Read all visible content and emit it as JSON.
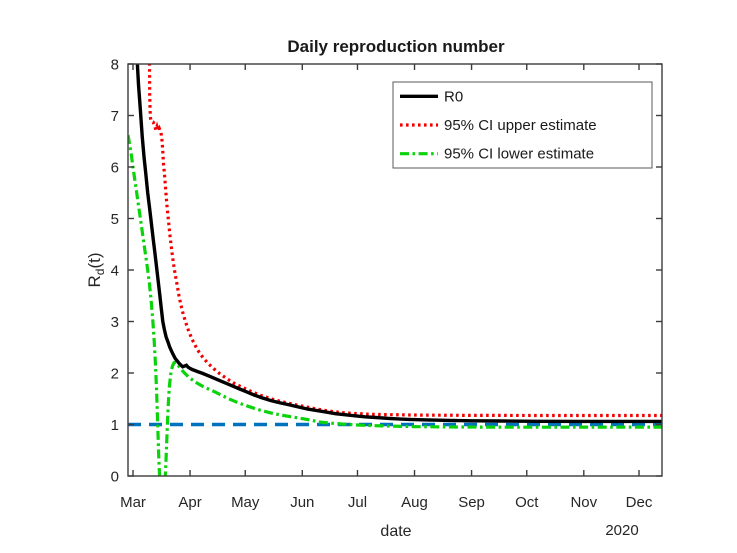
{
  "chart_data": {
    "type": "line",
    "title": "Daily reproduction number",
    "xlabel": "date",
    "ylabel": "R_d(t)",
    "ylabel_parts": {
      "base": "R",
      "sub": "d",
      "rest": "(t)"
    },
    "xaxis_year": "2020",
    "ylim": [
      0,
      8
    ],
    "yticks": [
      0,
      1,
      2,
      3,
      4,
      5,
      6,
      7,
      8
    ],
    "xlim_days": [
      -2.72,
      287.5
    ],
    "xticks": [
      {
        "label": "Mar",
        "day": 0
      },
      {
        "label": "Apr",
        "day": 31
      },
      {
        "label": "May",
        "day": 61
      },
      {
        "label": "Jun",
        "day": 92
      },
      {
        "label": "Jul",
        "day": 122
      },
      {
        "label": "Aug",
        "day": 153
      },
      {
        "label": "Sep",
        "day": 184
      },
      {
        "label": "Oct",
        "day": 214
      },
      {
        "label": "Nov",
        "day": 245
      },
      {
        "label": "Dec",
        "day": 275
      }
    ],
    "grid": false,
    "legend_position": "top-right",
    "axis_color": "#3c3c3c",
    "tick_label_color": "#262626",
    "series": [
      {
        "name": "threshold-line",
        "label": "",
        "in_legend": false,
        "color": "#0072bd",
        "style": "dashed",
        "points": [
          [
            -2.72,
            1.0
          ],
          [
            287.5,
            1.0
          ]
        ]
      },
      {
        "name": "ci-upper",
        "label": "95% CI upper estimate",
        "in_legend": true,
        "color": "#f40000",
        "style": "dotted",
        "points": [
          [
            8.7,
            8.6
          ],
          [
            8.9,
            8.2
          ],
          [
            9.0,
            7.8
          ],
          [
            9.1,
            7.4
          ],
          [
            9.3,
            7.1
          ],
          [
            9.5,
            6.95
          ],
          [
            10,
            6.88
          ],
          [
            11,
            6.87
          ],
          [
            11.8,
            6.8
          ],
          [
            12.4,
            6.72
          ],
          [
            13,
            6.78
          ],
          [
            13.6,
            6.7
          ],
          [
            14.3,
            6.75
          ],
          [
            15.2,
            6.67
          ],
          [
            15.8,
            6.5
          ],
          [
            16.2,
            6.3
          ],
          [
            16.6,
            6.05
          ],
          [
            17,
            5.9
          ],
          [
            17.4,
            5.73
          ],
          [
            18,
            5.45
          ],
          [
            18.6,
            5.2
          ],
          [
            19.3,
            4.95
          ],
          [
            20,
            4.7
          ],
          [
            21,
            4.4
          ],
          [
            22,
            4.12
          ],
          [
            23,
            3.9
          ],
          [
            24,
            3.7
          ],
          [
            25,
            3.5
          ],
          [
            26,
            3.33
          ],
          [
            27,
            3.18
          ],
          [
            28.5,
            3.0
          ],
          [
            30,
            2.84
          ],
          [
            32,
            2.66
          ],
          [
            34,
            2.52
          ],
          [
            36,
            2.4
          ],
          [
            38,
            2.3
          ],
          [
            41,
            2.18
          ],
          [
            44,
            2.08
          ],
          [
            47,
            1.99
          ],
          [
            51,
            1.89
          ],
          [
            55,
            1.8
          ],
          [
            60,
            1.71
          ],
          [
            65,
            1.63
          ],
          [
            70,
            1.56
          ],
          [
            75,
            1.5
          ],
          [
            80,
            1.45
          ],
          [
            85,
            1.41
          ],
          [
            90,
            1.37
          ],
          [
            95,
            1.335
          ],
          [
            100,
            1.3
          ],
          [
            105,
            1.27
          ],
          [
            110,
            1.245
          ],
          [
            115,
            1.228
          ],
          [
            120,
            1.215
          ],
          [
            128,
            1.2
          ],
          [
            136,
            1.193
          ],
          [
            145,
            1.188
          ],
          [
            155,
            1.183
          ],
          [
            168,
            1.18
          ],
          [
            182,
            1.177
          ],
          [
            200,
            1.176
          ],
          [
            225,
            1.175
          ],
          [
            250,
            1.175
          ],
          [
            270,
            1.175
          ],
          [
            287.5,
            1.175
          ]
        ]
      },
      {
        "name": "ci-lower",
        "label": "95% CI lower estimate",
        "in_legend": true,
        "color": "#0bd30b",
        "style": "dashdot",
        "points": [
          [
            -2.72,
            6.62
          ],
          [
            -2,
            6.48
          ],
          [
            -1,
            6.25
          ],
          [
            0,
            6.0
          ],
          [
            1,
            5.75
          ],
          [
            2,
            5.5
          ],
          [
            3,
            5.25
          ],
          [
            4,
            5.0
          ],
          [
            5,
            4.75
          ],
          [
            6,
            4.5
          ],
          [
            7,
            4.25
          ],
          [
            8,
            4.0
          ],
          [
            9,
            3.7
          ],
          [
            10,
            3.35
          ],
          [
            10.8,
            3.0
          ],
          [
            11.5,
            2.62
          ],
          [
            12.2,
            2.15
          ],
          [
            12.8,
            1.65
          ],
          [
            13.4,
            1.0
          ],
          [
            14,
            0.35
          ],
          [
            14.6,
            -0.15
          ],
          [
            15.2,
            -0.4
          ],
          [
            16,
            -0.5
          ],
          [
            16.8,
            -0.45
          ],
          [
            17.4,
            -0.15
          ],
          [
            18,
            0.35
          ],
          [
            18.6,
            0.9
          ],
          [
            19.2,
            1.4
          ],
          [
            19.8,
            1.75
          ],
          [
            20.6,
            2.0
          ],
          [
            21.4,
            2.13
          ],
          [
            22.3,
            2.2
          ],
          [
            23.2,
            2.21
          ],
          [
            24.5,
            2.15
          ],
          [
            26,
            2.08
          ],
          [
            28,
            2.0
          ],
          [
            30,
            1.93
          ],
          [
            32.5,
            1.86
          ],
          [
            35,
            1.8
          ],
          [
            38,
            1.74
          ],
          [
            41,
            1.69
          ],
          [
            44,
            1.64
          ],
          [
            48,
            1.57
          ],
          [
            52,
            1.5
          ],
          [
            56,
            1.44
          ],
          [
            60,
            1.385
          ],
          [
            64,
            1.335
          ],
          [
            68,
            1.29
          ],
          [
            72,
            1.25
          ],
          [
            76,
            1.215
          ],
          [
            81,
            1.18
          ],
          [
            86,
            1.15
          ],
          [
            91,
            1.12
          ],
          [
            96,
            1.09
          ],
          [
            101,
            1.05
          ],
          [
            108,
            1.025
          ],
          [
            115,
            1.005
          ],
          [
            122,
            0.99
          ],
          [
            130,
            0.978
          ],
          [
            140,
            0.968
          ],
          [
            152,
            0.96
          ],
          [
            163,
            0.955
          ],
          [
            175,
            0.951
          ],
          [
            190,
            0.949
          ],
          [
            205,
            0.948
          ],
          [
            225,
            0.948
          ],
          [
            245,
            0.949
          ],
          [
            270,
            0.95
          ],
          [
            287.5,
            0.95
          ]
        ]
      },
      {
        "name": "r0",
        "label": "R0",
        "in_legend": true,
        "color": "#000000",
        "style": "solid",
        "points": [
          [
            1.8,
            8.5
          ],
          [
            2.2,
            8.1
          ],
          [
            3,
            7.6
          ],
          [
            4,
            7.1
          ],
          [
            5,
            6.6
          ],
          [
            6,
            6.2
          ],
          [
            7,
            5.85
          ],
          [
            8,
            5.5
          ],
          [
            9,
            5.2
          ],
          [
            10,
            4.9
          ],
          [
            11,
            4.6
          ],
          [
            12,
            4.3
          ],
          [
            13,
            4.0
          ],
          [
            13.8,
            3.75
          ],
          [
            14.6,
            3.5
          ],
          [
            15.4,
            3.25
          ],
          [
            16.2,
            3.0
          ],
          [
            17,
            2.85
          ],
          [
            18,
            2.7
          ],
          [
            19,
            2.6
          ],
          [
            20,
            2.5
          ],
          [
            21.5,
            2.38
          ],
          [
            23,
            2.28
          ],
          [
            25,
            2.19
          ],
          [
            27,
            2.12
          ],
          [
            29,
            2.15
          ],
          [
            30,
            2.11
          ],
          [
            32,
            2.07
          ],
          [
            35,
            2.03
          ],
          [
            38,
            1.99
          ],
          [
            42,
            1.93
          ],
          [
            46,
            1.87
          ],
          [
            50,
            1.81
          ],
          [
            54,
            1.75
          ],
          [
            58,
            1.69
          ],
          [
            62,
            1.63
          ],
          [
            66,
            1.57
          ],
          [
            70,
            1.52
          ],
          [
            75,
            1.465
          ],
          [
            80,
            1.42
          ],
          [
            85,
            1.38
          ],
          [
            90,
            1.34
          ],
          [
            95,
            1.3
          ],
          [
            100,
            1.27
          ],
          [
            105,
            1.24
          ],
          [
            110,
            1.21
          ],
          [
            115,
            1.19
          ],
          [
            120,
            1.17
          ],
          [
            126,
            1.15
          ],
          [
            132,
            1.135
          ],
          [
            140,
            1.115
          ],
          [
            150,
            1.1
          ],
          [
            160,
            1.09
          ],
          [
            172,
            1.08
          ],
          [
            185,
            1.072
          ],
          [
            200,
            1.067
          ],
          [
            220,
            1.063
          ],
          [
            245,
            1.06
          ],
          [
            270,
            1.06
          ],
          [
            287.5,
            1.06
          ]
        ]
      }
    ],
    "legend_order": [
      "r0",
      "ci-upper",
      "ci-lower"
    ]
  }
}
